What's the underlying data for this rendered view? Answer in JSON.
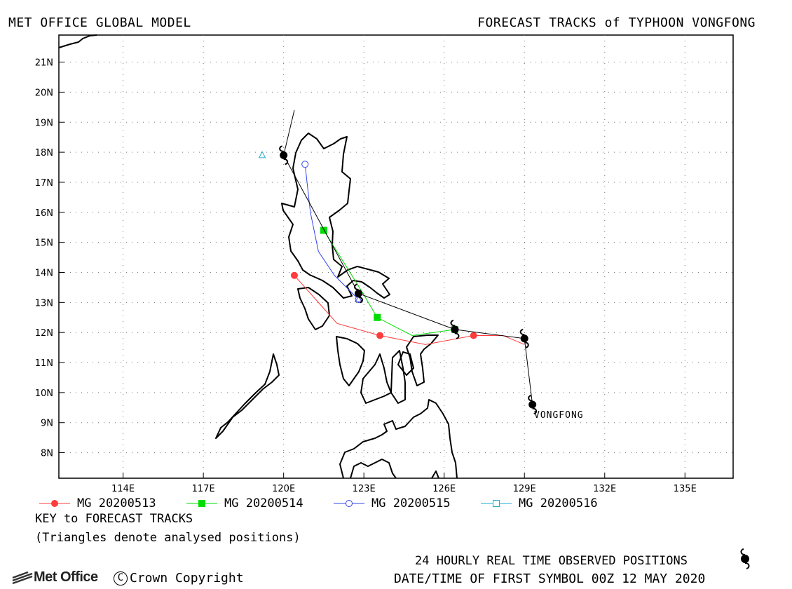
{
  "header": {
    "left_title": "MET OFFICE GLOBAL MODEL",
    "right_title": "FORECAST TRACKS of TYPHOON VONGFONG"
  },
  "axes": {
    "lon_ticks": [
      "114E",
      "117E",
      "120E",
      "123E",
      "126E",
      "129E",
      "132E",
      "135E"
    ],
    "lon_values": [
      114,
      117,
      120,
      123,
      126,
      129,
      132,
      135
    ],
    "lat_ticks": [
      "21N",
      "20N",
      "19N",
      "18N",
      "17N",
      "16N",
      "15N",
      "14N",
      "13N",
      "12N",
      "11N",
      "10N",
      "9N",
      "8N"
    ],
    "lat_values": [
      21,
      20,
      19,
      18,
      17,
      16,
      15,
      14,
      13,
      12,
      11,
      10,
      9,
      8
    ],
    "lon_range": [
      111.6,
      136.8
    ],
    "lat_range": [
      7.15,
      21.9
    ],
    "grid": "dotted"
  },
  "storm_label": "VONGFONG",
  "observed_track": {
    "points": [
      [
        129.3,
        9.6
      ],
      [
        129.0,
        11.8
      ],
      [
        126.4,
        12.1
      ],
      [
        122.8,
        13.3
      ],
      [
        120.0,
        17.9
      ],
      [
        120.4,
        19.4
      ]
    ]
  },
  "forecasts": [
    {
      "name": "MG 20200513",
      "color": "#ff3b3b",
      "marker": "circle-filled",
      "points": [
        [
          129.0,
          11.6
        ],
        [
          128.2,
          11.9
        ],
        [
          127.1,
          11.9
        ],
        [
          125.3,
          11.6
        ],
        [
          123.6,
          11.9
        ],
        [
          122.0,
          12.3
        ],
        [
          121.0,
          13.3
        ],
        [
          120.4,
          13.9
        ]
      ],
      "marked": [
        [
          127.1,
          11.9
        ],
        [
          123.6,
          11.9
        ],
        [
          120.4,
          13.9
        ]
      ]
    },
    {
      "name": "MG 20200514",
      "color": "#00dd00",
      "marker": "square-filled",
      "points": [
        [
          126.4,
          12.1
        ],
        [
          124.8,
          11.9
        ],
        [
          123.5,
          12.5
        ],
        [
          122.9,
          13.4
        ],
        [
          121.5,
          15.4
        ]
      ],
      "marked": [
        [
          126.4,
          12.1
        ],
        [
          123.5,
          12.5
        ],
        [
          121.5,
          15.4
        ]
      ]
    },
    {
      "name": "MG 20200515",
      "color": "#3344ee",
      "marker": "circle-open",
      "points": [
        [
          122.8,
          13.1
        ],
        [
          121.9,
          13.9
        ],
        [
          121.3,
          14.7
        ],
        [
          121.0,
          16.0
        ],
        [
          120.8,
          17.6
        ]
      ],
      "marked": [
        [
          122.8,
          13.1
        ],
        [
          120.8,
          17.6
        ]
      ]
    },
    {
      "name": "MG 20200516",
      "color": "#22aacc",
      "marker": "square-open",
      "points": [
        [
          119.2,
          17.9
        ]
      ],
      "marked": []
    }
  ],
  "analysed_positions": [
    {
      "color": "#00dd00",
      "point": [
        126.4,
        12.1
      ]
    },
    {
      "color": "#3344ee",
      "point": [
        122.8,
        13.1
      ]
    },
    {
      "color": "#22aacc",
      "point": [
        119.2,
        17.9
      ]
    }
  ],
  "legend": {
    "items": [
      "MG 20200513",
      "MG 20200514",
      "MG 20200515",
      "MG 20200516"
    ],
    "key_title": "KEY to FORECAST TRACKS",
    "key_note": "(Triangles denote analysed positions)"
  },
  "footer": {
    "observed_note": "24 HOURLY REAL TIME OBSERVED POSITIONS",
    "first_symbol": "DATE/TIME OF FIRST SYMBOL 00Z 12 MAY 2020",
    "logo_text": "Met Office",
    "copyright": "Crown Copyright"
  }
}
